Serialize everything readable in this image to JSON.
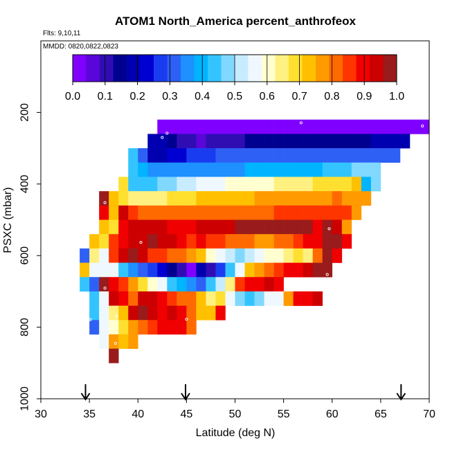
{
  "chart_data": {
    "type": "heatmap",
    "title": "ATOM1 North_America percent_anthrofeox",
    "flights_label": "Flts: 9,10,11",
    "dates_label": "MMDD: 0820,0822,0823",
    "xlabel": "Latitude (deg N)",
    "ylabel": "PSXC (mbar)",
    "xlim": [
      30,
      70
    ],
    "ylim": [
      1000,
      0
    ],
    "x_ticks": [
      "30",
      "35",
      "40",
      "45",
      "50",
      "55",
      "60",
      "65",
      "70"
    ],
    "y_ticks": [
      "200",
      "400",
      "600",
      "800",
      "1000"
    ],
    "colorbar": {
      "range": [
        0,
        1
      ],
      "tick_labels": [
        "0.0",
        "0.1",
        "0.2",
        "0.3",
        "0.4",
        "0.5",
        "0.6",
        "0.7",
        "0.8",
        "0.9",
        "1.0"
      ],
      "colors": [
        "#7f00ff",
        "#5a06d8",
        "#2f0db3",
        "#000090",
        "#0000b0",
        "#0000d2",
        "#1a3cf0",
        "#2f60f5",
        "#1e90ff",
        "#00b4ff",
        "#33c4ff",
        "#80d8ff",
        "#c8ecff",
        "#f0f8ff",
        "#ffffd0",
        "#fff080",
        "#ffe030",
        "#ffc000",
        "#ff9a00",
        "#ff6a00",
        "#ff3500",
        "#f00000",
        "#cc0000",
        "#9a1b1b"
      ]
    },
    "cell_size": {
      "lat": 1,
      "pres": 40
    },
    "rows": [
      {
        "pres": 240,
        "lat_start": 42,
        "values": [
          0.01,
          0.01,
          0.01,
          0.01,
          0.01,
          0.01,
          0.01,
          0.01,
          0.01,
          0.01,
          0.01,
          0.01,
          0.01,
          0.01,
          0.01,
          0.01,
          0.01,
          0.01,
          0.01,
          0.01,
          0.01,
          0.01,
          0.01,
          0.01,
          0.01,
          0.01,
          0.01,
          0.01
        ]
      },
      {
        "pres": 280,
        "lat_start": 41,
        "values": [
          0.2,
          0.2,
          0.15,
          0.12,
          0.1,
          0.08,
          0.09,
          0.1,
          0.11,
          0.12,
          0.13,
          0.14,
          0.15,
          0.15,
          0.16,
          0.16,
          0.16,
          0.16,
          0.16,
          0.16,
          0.16,
          0.16,
          0.16,
          0.17,
          0.18,
          0.19,
          0.2
        ]
      },
      {
        "pres": 320,
        "lat_start": 39,
        "values": [
          0.45,
          0.33,
          0.2,
          0.2,
          0.22,
          0.24,
          0.26,
          0.28,
          0.29,
          0.3,
          0.3,
          0.31,
          0.31,
          0.31,
          0.31,
          0.32,
          0.32,
          0.32,
          0.32,
          0.32,
          0.32,
          0.32,
          0.32,
          0.32,
          0.32,
          0.33,
          0.33,
          0.33
        ]
      },
      {
        "pres": 360,
        "lat_start": 39,
        "values": [
          0.45,
          0.4,
          0.37,
          0.36,
          0.36,
          0.36,
          0.36,
          0.35,
          0.36,
          0.37,
          0.37,
          0.37,
          0.38,
          0.38,
          0.38,
          0.38,
          0.38,
          0.39,
          0.4,
          0.41,
          0.42,
          0.44,
          0.45,
          0.46,
          0.46,
          0.46
        ]
      },
      {
        "pres": 400,
        "lat_start": 38,
        "values": [
          0.68,
          0.45,
          0.42,
          0.44,
          0.46,
          0.48,
          0.5,
          0.52,
          0.55,
          0.57,
          0.58,
          0.6,
          0.6,
          0.6,
          0.61,
          0.62,
          0.63,
          0.64,
          0.65,
          0.66,
          0.67,
          0.68,
          0.69,
          0.7,
          0.72,
          0.4,
          0.46
        ]
      },
      {
        "pres": 440,
        "lat_start": 36,
        "values": [
          1.0,
          0.72,
          0.7,
          0.65,
          0.64,
          0.65,
          0.66,
          0.67,
          0.68,
          0.7,
          0.72,
          0.72,
          0.72,
          0.73,
          0.74,
          0.74,
          0.75,
          0.75,
          0.75,
          0.76,
          0.77,
          0.77,
          0.78,
          0.78,
          0.8,
          0.78,
          0.78,
          0.78
        ]
      },
      {
        "pres": 480,
        "lat_start": 36,
        "values": [
          0.9,
          0.72,
          0.92,
          0.86,
          0.8,
          0.8,
          0.8,
          0.81,
          0.82,
          0.82,
          0.82,
          0.82,
          0.82,
          0.82,
          0.82,
          0.82,
          0.83,
          0.83,
          0.85,
          0.85,
          0.86,
          0.86,
          0.86,
          0.86,
          0.86,
          0.86,
          0.77
        ]
      },
      {
        "pres": 520,
        "lat_start": 36,
        "values": [
          0.72,
          0.67,
          0.88,
          0.95,
          0.94,
          0.93,
          0.92,
          0.9,
          0.9,
          0.91,
          0.92,
          0.93,
          0.94,
          0.95,
          0.96,
          0.96,
          0.96,
          0.96,
          0.96,
          0.96,
          0.96,
          0.96,
          0.9,
          0.96,
          0.92,
          0.78
        ]
      },
      {
        "pres": 560,
        "lat_start": 35,
        "values": [
          0.72,
          0.67,
          0.85,
          0.9,
          0.93,
          0.92,
          0.97,
          0.95,
          0.93,
          0.9,
          0.85,
          0.88,
          0.86,
          0.84,
          0.82,
          0.82,
          0.8,
          0.78,
          0.76,
          0.8,
          0.82,
          0.85,
          0.88,
          0.9,
          0.98,
          0.98,
          0.9
        ]
      },
      {
        "pres": 600,
        "lat_start": 34,
        "values": [
          0.3,
          0.64,
          0.58,
          0.86,
          0.95,
          0.98,
          0.92,
          0.87,
          0.84,
          0.82,
          0.8,
          0.76,
          0.72,
          0.62,
          0.55,
          0.53,
          0.48,
          0.5,
          0.55,
          0.6,
          0.62,
          0.65,
          0.7,
          0.65,
          0.8,
          0.98,
          0.88
        ]
      },
      {
        "pres": 640,
        "lat_start": 34,
        "values": [
          0.72,
          0.55,
          0.55,
          0.55,
          0.45,
          0.35,
          0.32,
          0.27,
          0.22,
          0.15,
          0.12,
          0.03,
          0.2,
          0.1,
          0.28,
          0.45,
          0.55,
          0.72,
          0.75,
          0.8,
          0.85,
          0.88,
          0.9,
          0.92,
          0.97,
          0.97
        ]
      },
      {
        "pres": 680,
        "lat_start": 34,
        "values": [
          0.45,
          0.3,
          0.98,
          0.88,
          0.84,
          0.78,
          0.7,
          0.62,
          0.56,
          0.45,
          0.4,
          0.35,
          0.32,
          0.42,
          0.52,
          0.65,
          0.86,
          0.88,
          0.9,
          0.92,
          0.9
        ]
      },
      {
        "pres": 720,
        "lat_start": 35,
        "values": [
          0.45,
          0.55,
          0.95,
          0.9,
          0.8,
          0.95,
          0.94,
          0.9,
          0.86,
          0.82,
          0.8,
          0.72,
          0.65,
          0.68,
          0.55,
          0.48,
          0.45,
          0.48,
          0.55,
          0.58,
          0.78,
          0.88,
          0.88,
          0.92
        ]
      },
      {
        "pres": 760,
        "lat_start": 35,
        "values": [
          0.45,
          0.58,
          0.65,
          0.72,
          0.92,
          0.96,
          0.92,
          0.9,
          0.92,
          0.88,
          0.82,
          0.72,
          0.72,
          0.88
        ]
      },
      {
        "pres": 800,
        "lat_start": 35,
        "values": [
          0.33,
          0.58,
          0.62,
          0.7,
          0.76,
          0.8,
          0.85,
          0.88,
          0.9,
          0.9,
          0.82
        ]
      },
      {
        "pres": 840,
        "lat_start": 36,
        "values": [
          0.58,
          0.75,
          0.72,
          0.77
        ]
      },
      {
        "pres": 880,
        "lat_start": 37,
        "values": [
          0.99
        ]
      }
    ],
    "sample_markers": [
      {
        "lat": 42.5,
        "pres": 270
      },
      {
        "lat": 43,
        "pres": 258
      },
      {
        "lat": 56.8,
        "pres": 229
      },
      {
        "lat": 69.3,
        "pres": 238
      },
      {
        "lat": 36.6,
        "pres": 452
      },
      {
        "lat": 40.3,
        "pres": 563
      },
      {
        "lat": 34.7,
        "pres": 566
      },
      {
        "lat": 59.7,
        "pres": 525
      },
      {
        "lat": 50.5,
        "pres": 652
      },
      {
        "lat": 59.5,
        "pres": 653
      },
      {
        "lat": 36.6,
        "pres": 691
      },
      {
        "lat": 37.8,
        "pres": 770
      },
      {
        "lat": 35.1,
        "pres": 779
      },
      {
        "lat": 45.0,
        "pres": 778
      },
      {
        "lat": 37.7,
        "pres": 845
      }
    ],
    "arrows_lat": [
      34.6,
      44.9,
      67.1
    ]
  }
}
